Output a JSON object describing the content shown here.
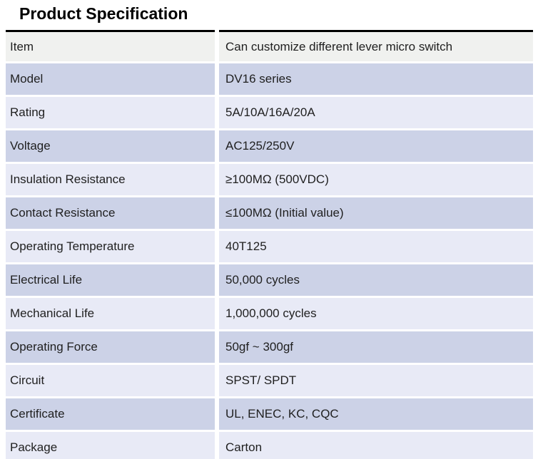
{
  "title": "Product Specification",
  "table": {
    "rows": [
      {
        "label": "Item",
        "value": "Can customize different lever micro switch"
      },
      {
        "label": "Model",
        "value": "DV16 series"
      },
      {
        "label": "Rating",
        "value": "5A/10A/16A/20A"
      },
      {
        "label": "Voltage",
        "value": "AC125/250V"
      },
      {
        "label": "Insulation Resistance",
        "value": "≥100MΩ (500VDC)"
      },
      {
        "label": "Contact Resistance",
        "value": "≤100MΩ (Initial value)"
      },
      {
        "label": "Operating Temperature",
        "value": "40T125"
      },
      {
        "label": "Electrical Life",
        "value": "50,000 cycles"
      },
      {
        "label": "Mechanical Life",
        "value": "1,000,000 cycles"
      },
      {
        "label": "Operating Force",
        "value": "50gf ~ 300gf"
      },
      {
        "label": "Circuit",
        "value": "SPST/ SPDT"
      },
      {
        "label": "Certificate",
        "value": "UL, ENEC, KC, CQC"
      },
      {
        "label": "Package",
        "value": "Carton"
      }
    ],
    "colors": {
      "header_row_bg": "#f0f1ef",
      "row_alt_dark": "#ccd2e7",
      "row_alt_light": "#e8eaf6",
      "top_border": "#000000"
    }
  }
}
